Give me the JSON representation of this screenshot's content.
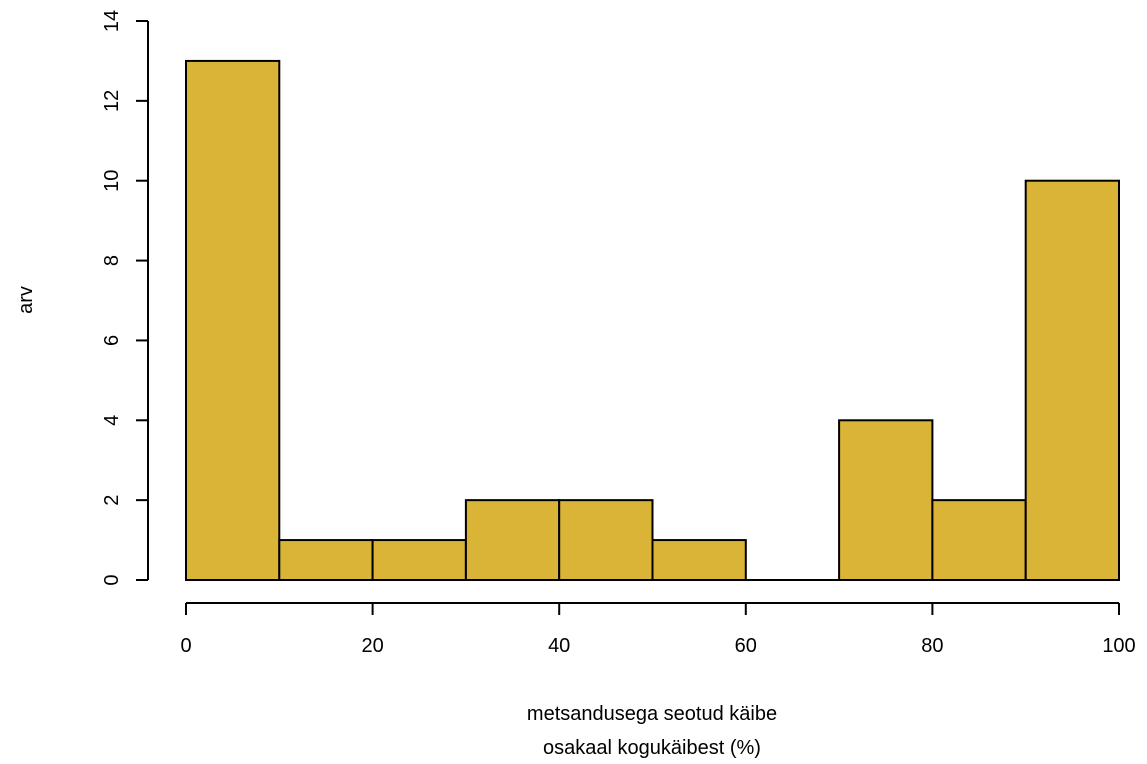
{
  "chart_data": {
    "type": "bar",
    "title": "",
    "xlabel": [
      "metsandusega seotud käibe",
      "osakaal kogukäibest (%)"
    ],
    "ylabel": "arv",
    "bins": [
      {
        "x0": 0,
        "x1": 10,
        "count": 13
      },
      {
        "x0": 10,
        "x1": 20,
        "count": 1
      },
      {
        "x0": 20,
        "x1": 30,
        "count": 1
      },
      {
        "x0": 30,
        "x1": 40,
        "count": 2
      },
      {
        "x0": 40,
        "x1": 50,
        "count": 2
      },
      {
        "x0": 50,
        "x1": 60,
        "count": 1
      },
      {
        "x0": 60,
        "x1": 70,
        "count": 0
      },
      {
        "x0": 70,
        "x1": 80,
        "count": 4
      },
      {
        "x0": 80,
        "x1": 90,
        "count": 2
      },
      {
        "x0": 90,
        "x1": 100,
        "count": 10
      }
    ],
    "xlim": [
      0,
      100
    ],
    "ylim": [
      0,
      14
    ],
    "xticks": [
      "0",
      "20",
      "40",
      "60",
      "80",
      "100"
    ],
    "yticks": [
      "0",
      "2",
      "4",
      "6",
      "8",
      "10",
      "12",
      "14"
    ],
    "grid": false,
    "colors": {
      "bar_fill": "#DAB436",
      "bar_stroke": "#000000"
    }
  }
}
